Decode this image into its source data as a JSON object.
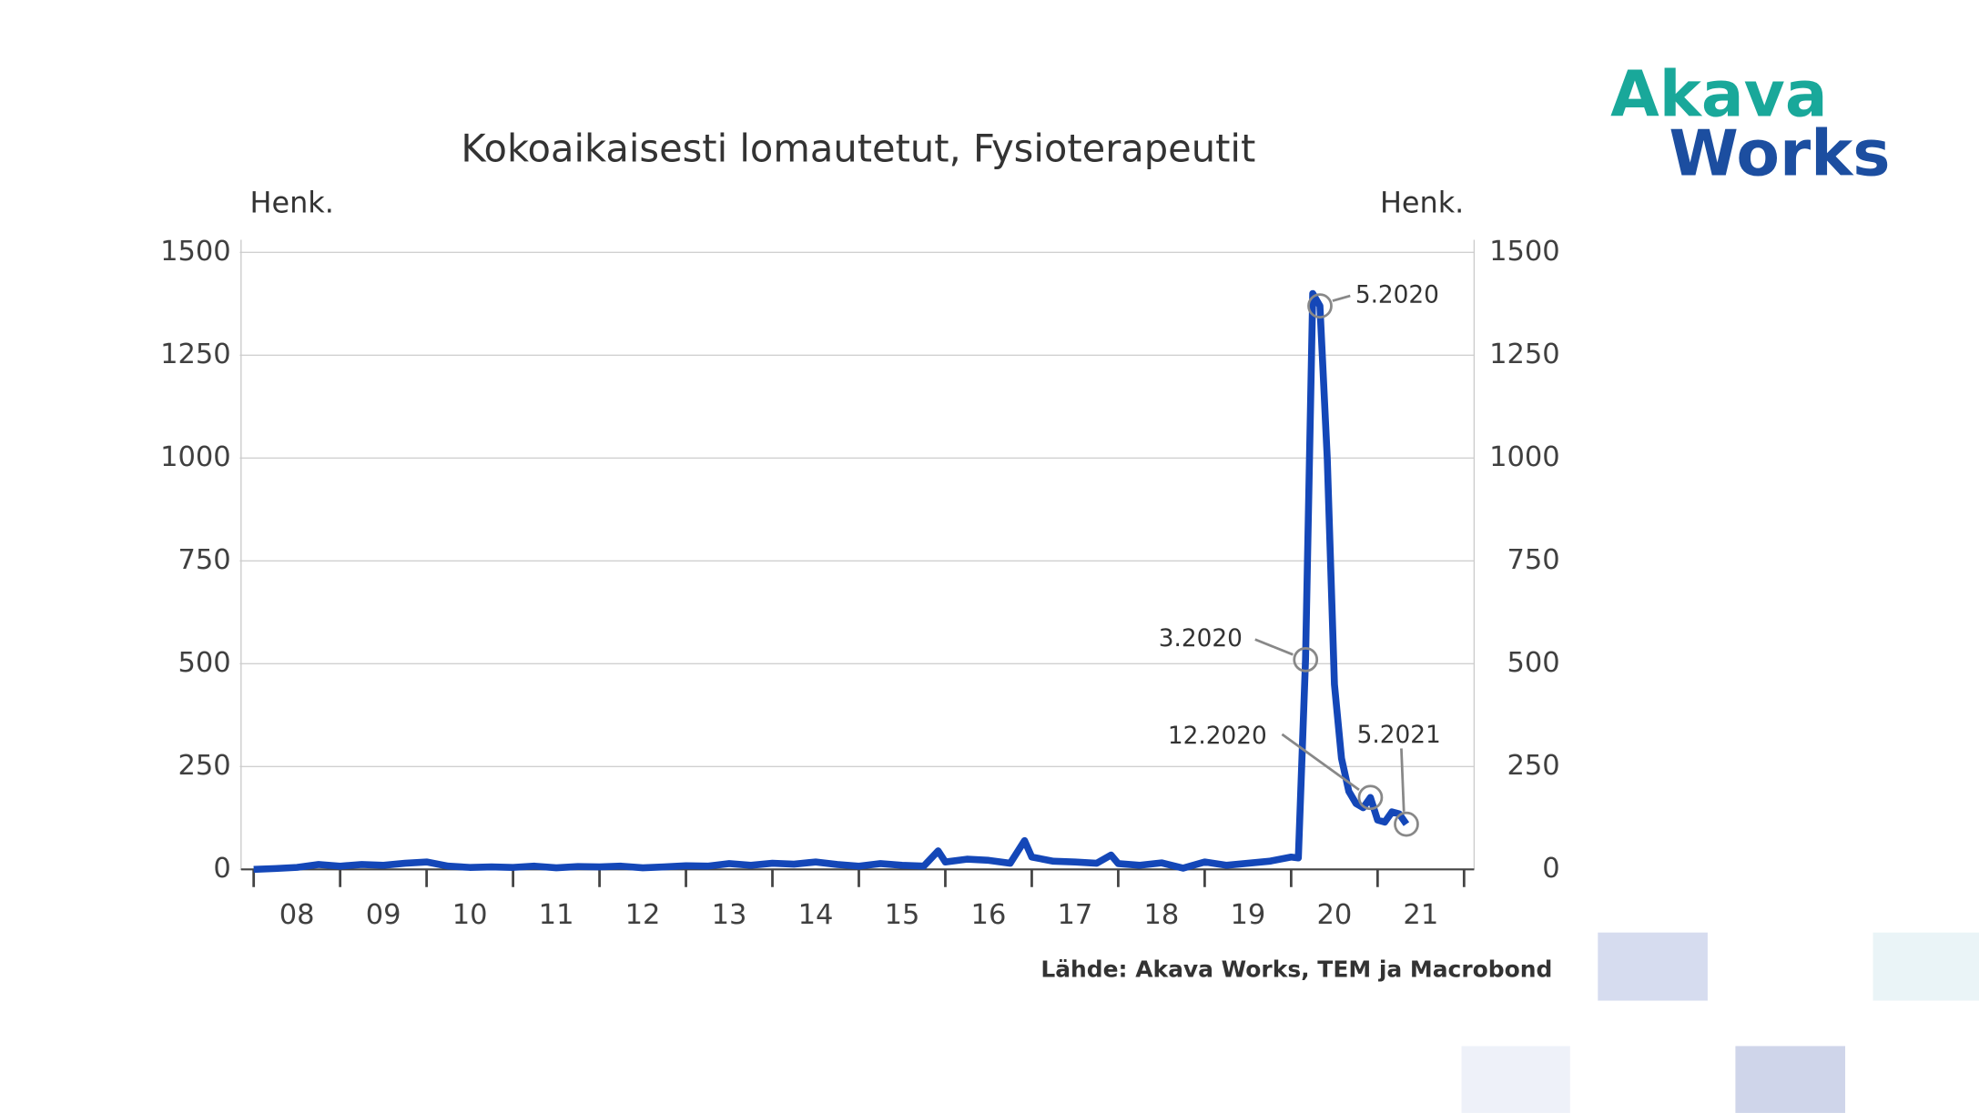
{
  "chart_data": {
    "type": "line",
    "title": "Kokoaikaisesti lomautetut, Fysioterapeutit",
    "ylabel": "Henk.",
    "y2label": "Henk.",
    "source": "Lähde: Akava Works, TEM ja Macrobond",
    "logo": [
      "Akava",
      "Works"
    ],
    "color": "#1447b8",
    "x": [
      8,
      8.25,
      8.5,
      8.75,
      9,
      9.25,
      9.5,
      9.75,
      10,
      10.25,
      10.5,
      10.75,
      11,
      11.25,
      11.5,
      11.75,
      12,
      12.25,
      12.5,
      12.75,
      13,
      13.25,
      13.5,
      13.75,
      14,
      14.25,
      14.5,
      14.75,
      15,
      15.25,
      15.5,
      15.75,
      15.917,
      16,
      16.25,
      16.5,
      16.75,
      16.917,
      17,
      17.25,
      17.5,
      17.75,
      17.917,
      18,
      18.25,
      18.5,
      18.75,
      19,
      19.25,
      19.5,
      19.75,
      20,
      20.083,
      20.167,
      20.25,
      20.333,
      20.417,
      20.5,
      20.583,
      20.667,
      20.75,
      20.833,
      20.917,
      21,
      21.083,
      21.167,
      21.25,
      21.333
    ],
    "values": [
      0,
      2,
      5,
      12,
      8,
      12,
      10,
      15,
      18,
      8,
      5,
      6,
      5,
      8,
      4,
      7,
      6,
      8,
      4,
      6,
      9,
      8,
      14,
      10,
      15,
      13,
      18,
      12,
      8,
      14,
      10,
      8,
      45,
      18,
      25,
      22,
      15,
      70,
      30,
      20,
      18,
      15,
      35,
      14,
      10,
      16,
      3,
      18,
      10,
      15,
      20,
      30,
      28,
      510,
      1400,
      1370,
      1000,
      450,
      270,
      190,
      160,
      150,
      175,
      120,
      115,
      140,
      135,
      110
    ],
    "xlim": [
      8,
      22
    ],
    "xticks": [
      {
        "value": 8.5,
        "label": "08"
      },
      {
        "value": 9.5,
        "label": "09"
      },
      {
        "value": 10.5,
        "label": "10"
      },
      {
        "value": 11.5,
        "label": "11"
      },
      {
        "value": 12.5,
        "label": "12"
      },
      {
        "value": 13.5,
        "label": "13"
      },
      {
        "value": 14.5,
        "label": "14"
      },
      {
        "value": 15.5,
        "label": "15"
      },
      {
        "value": 16.5,
        "label": "16"
      },
      {
        "value": 17.5,
        "label": "17"
      },
      {
        "value": 18.5,
        "label": "18"
      },
      {
        "value": 19.5,
        "label": "19"
      },
      {
        "value": 20.5,
        "label": "20"
      },
      {
        "value": 21.5,
        "label": "21"
      }
    ],
    "ylim": [
      0,
      1500
    ],
    "yticks": [
      0,
      250,
      500,
      750,
      1000,
      1250,
      1500
    ],
    "y2lim": [
      0,
      1500
    ],
    "y2ticks": [
      0,
      250,
      500,
      750,
      1000,
      1250,
      1500
    ],
    "grid": true,
    "annotations": [
      {
        "text": "5.2020",
        "x": 20.333
      },
      {
        "text": "3.2020",
        "x": 20.167
      },
      {
        "text": "12.2020",
        "x": 20.917
      },
      {
        "text": "5.2021",
        "x": 21.333
      }
    ]
  }
}
